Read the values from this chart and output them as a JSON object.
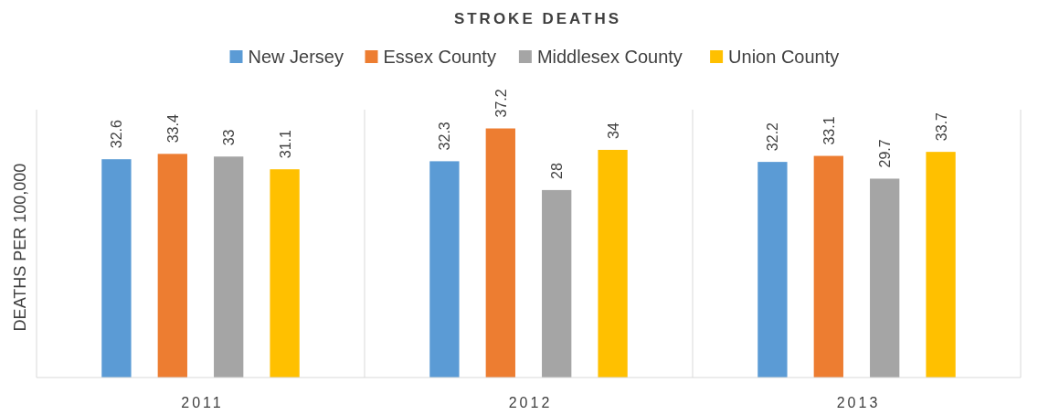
{
  "chart_data": {
    "type": "bar",
    "title": "STROKE DEATHS",
    "ylabel": "DEATHS PER 100,000",
    "categories": [
      "2011",
      "2012",
      "2013"
    ],
    "series": [
      {
        "name": "New Jersey",
        "color": "#5b9bd5",
        "values": [
          32.6,
          32.3,
          32.2
        ]
      },
      {
        "name": "Essex County",
        "color": "#ed7d31",
        "values": [
          33.4,
          37.2,
          33.1
        ]
      },
      {
        "name": "Middlesex County",
        "color": "#a5a5a5",
        "values": [
          33,
          28,
          29.7
        ]
      },
      {
        "name": "Union County",
        "color": "#ffc000",
        "values": [
          31.1,
          34,
          33.7
        ]
      }
    ],
    "ylim": [
      0,
      40
    ],
    "tick_labels": "x",
    "grid": "x",
    "legend": "top",
    "data_labels": true
  }
}
